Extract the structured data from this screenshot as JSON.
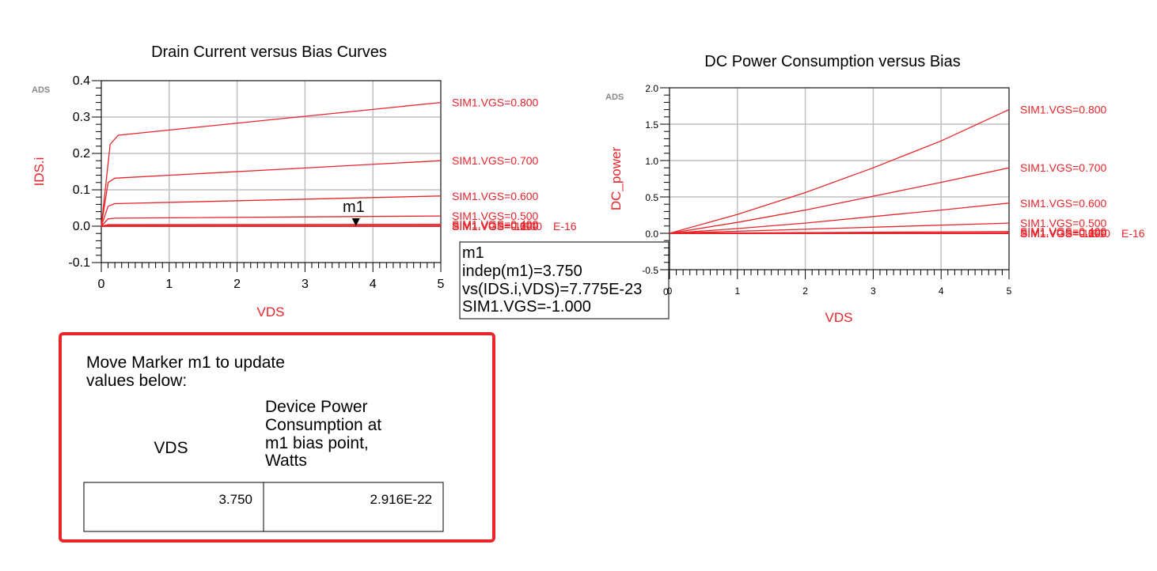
{
  "chart_data": [
    {
      "type": "line",
      "title": "Drain Current versus Bias Curves",
      "xlabel": "VDS",
      "ylabel": "IDS.i",
      "watermark": "ADS",
      "xlim": [
        0,
        5
      ],
      "ylim": [
        -0.1,
        0.4
      ],
      "xticks": [
        "0",
        "1",
        "2",
        "3",
        "4",
        "5"
      ],
      "yticks": [
        "-0.1",
        "0.0",
        "0.1",
        "0.2",
        "0.3",
        "0.4"
      ],
      "grid": true,
      "series": [
        {
          "name": "SIM1.VGS=0.800",
          "x": [
            0,
            0.13,
            0.25,
            5
          ],
          "y": [
            0,
            0.225,
            0.25,
            0.34
          ]
        },
        {
          "name": "SIM1.VGS=0.700",
          "x": [
            0,
            0.1,
            0.2,
            5
          ],
          "y": [
            0,
            0.12,
            0.132,
            0.18
          ]
        },
        {
          "name": "SIM1.VGS=0.600",
          "x": [
            0,
            0.1,
            0.2,
            5
          ],
          "y": [
            0,
            0.055,
            0.062,
            0.083
          ]
        },
        {
          "name": "SIM1.VGS=0.500",
          "x": [
            0,
            0.1,
            0.2,
            5
          ],
          "y": [
            0,
            0.02,
            0.022,
            0.028
          ]
        },
        {
          "name": "SIM1.VGS=0.400",
          "x": [
            0,
            0.1,
            5
          ],
          "y": [
            0,
            0.004,
            0.005
          ]
        },
        {
          "name": "SIM1.VGS=0.300",
          "x": [
            0,
            5
          ],
          "y": [
            0,
            0.001
          ]
        },
        {
          "name": "SIM1.VGS=0.200",
          "x": [
            0,
            5
          ],
          "y": [
            0,
            0.0
          ]
        },
        {
          "name": "SIM1.VGS=0.100",
          "x": [
            0,
            5
          ],
          "y": [
            0,
            0.0
          ]
        },
        {
          "name": "SIM1.VGS=0.000",
          "x": [
            0,
            5
          ],
          "y": [
            0,
            0.0
          ]
        },
        {
          "name": "SIM1.VGS=-1.000",
          "x": [
            0,
            5
          ],
          "y": [
            0,
            0.0
          ]
        }
      ],
      "series_label_overlap": "SIM1.VGS=0.400 ... -1.000E-16",
      "series_label_overlap_tail": "E-16",
      "marker": {
        "name": "m1",
        "x": 3.75,
        "y": 0.0
      }
    },
    {
      "type": "line",
      "title": "DC Power Consumption versus Bias",
      "xlabel": "VDS",
      "ylabel": "DC_power",
      "watermark": "ADS",
      "xlim": [
        0,
        5
      ],
      "ylim": [
        -0.5,
        2.0
      ],
      "xticks": [
        "0",
        "1",
        "2",
        "3",
        "4",
        "5"
      ],
      "yticks": [
        "-0.5",
        "0.0",
        "0.5",
        "1.0",
        "1.5",
        "2.0"
      ],
      "grid": true,
      "series": [
        {
          "name": "SIM1.VGS=0.800",
          "x": [
            0,
            1,
            2,
            3,
            4,
            5
          ],
          "y": [
            0,
            0.26,
            0.56,
            0.9,
            1.27,
            1.7
          ]
        },
        {
          "name": "SIM1.VGS=0.700",
          "x": [
            0,
            1,
            2,
            3,
            4,
            5
          ],
          "y": [
            0,
            0.15,
            0.32,
            0.51,
            0.7,
            0.9
          ]
        },
        {
          "name": "SIM1.VGS=0.600",
          "x": [
            0,
            1,
            2,
            3,
            4,
            5
          ],
          "y": [
            0,
            0.065,
            0.14,
            0.23,
            0.32,
            0.415
          ]
        },
        {
          "name": "SIM1.VGS=0.500",
          "x": [
            0,
            5
          ],
          "y": [
            0,
            0.14
          ]
        },
        {
          "name": "SIM1.VGS=0.400",
          "x": [
            0,
            5
          ],
          "y": [
            0,
            0.025
          ]
        },
        {
          "name": "SIM1.VGS=0.300",
          "x": [
            0,
            5
          ],
          "y": [
            0,
            0.005
          ]
        },
        {
          "name": "SIM1.VGS=0.200",
          "x": [
            0,
            5
          ],
          "y": [
            0,
            0.0
          ]
        },
        {
          "name": "SIM1.VGS=0.100",
          "x": [
            0,
            5
          ],
          "y": [
            0,
            0.0
          ]
        },
        {
          "name": "SIM1.VGS=0.000",
          "x": [
            0,
            5
          ],
          "y": [
            0,
            0.0
          ]
        },
        {
          "name": "SIM1.VGS=-1.000",
          "x": [
            0,
            5
          ],
          "y": [
            0,
            0.0
          ]
        }
      ],
      "series_label_overlap_tail": "E-16"
    }
  ],
  "marker_readout": {
    "line1": "m1",
    "line2": "indep(m1)=3.750",
    "line3": "vs(IDS.i,VDS)=7.775E-23",
    "line4": "SIM1.VGS=-1.000",
    "overflow_char": "0"
  },
  "note_box": {
    "instruction_line1": "Move Marker m1 to update",
    "instruction_line2": "values below:",
    "col1_header": "VDS",
    "col2_header_lines": [
      "Device Power",
      "Consumption at",
      "m1 bias point,",
      "Watts"
    ],
    "col1_value": "3.750",
    "col2_value": "2.916E-22",
    "border_color": "#e8252b"
  },
  "colors": {
    "series": "#e8252b",
    "grid": "#c0c0c0",
    "axis": "#000000"
  }
}
